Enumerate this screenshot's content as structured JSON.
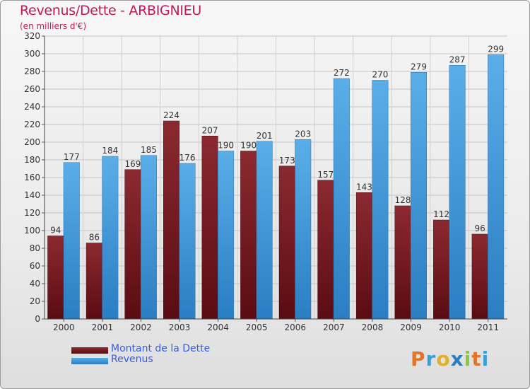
{
  "chart_data": {
    "type": "bar",
    "title": "Revenus/Dette - ARBIGNIEU",
    "subtitle": "(en milliers d'€)",
    "xlabel": "",
    "ylabel": "",
    "ylim": [
      0,
      320
    ],
    "ytick_step": 20,
    "grid": true,
    "categories": [
      "2000",
      "2001",
      "2002",
      "2003",
      "2004",
      "2005",
      "2006",
      "2007",
      "2008",
      "2009",
      "2010",
      "2011"
    ],
    "series": [
      {
        "name": "Montant de la Dette",
        "color": "#7a1c22",
        "values": [
          94,
          86,
          169,
          224,
          207,
          190,
          173,
          157,
          143,
          128,
          112,
          96
        ]
      },
      {
        "name": "Revenus",
        "color": "#3a94d8",
        "values": [
          177,
          184,
          185,
          176,
          190,
          201,
          203,
          272,
          270,
          279,
          287,
          299
        ]
      }
    ],
    "legend": "bottom-left"
  },
  "logo": {
    "letters": [
      "P",
      "r",
      "o",
      "x",
      "i",
      "t",
      "i"
    ],
    "colors": [
      "#e0762b",
      "#3aa0d8",
      "#e0b02b",
      "#2a7fc0",
      "#8cc63f",
      "#e0762b",
      "#3aa0d8"
    ]
  }
}
